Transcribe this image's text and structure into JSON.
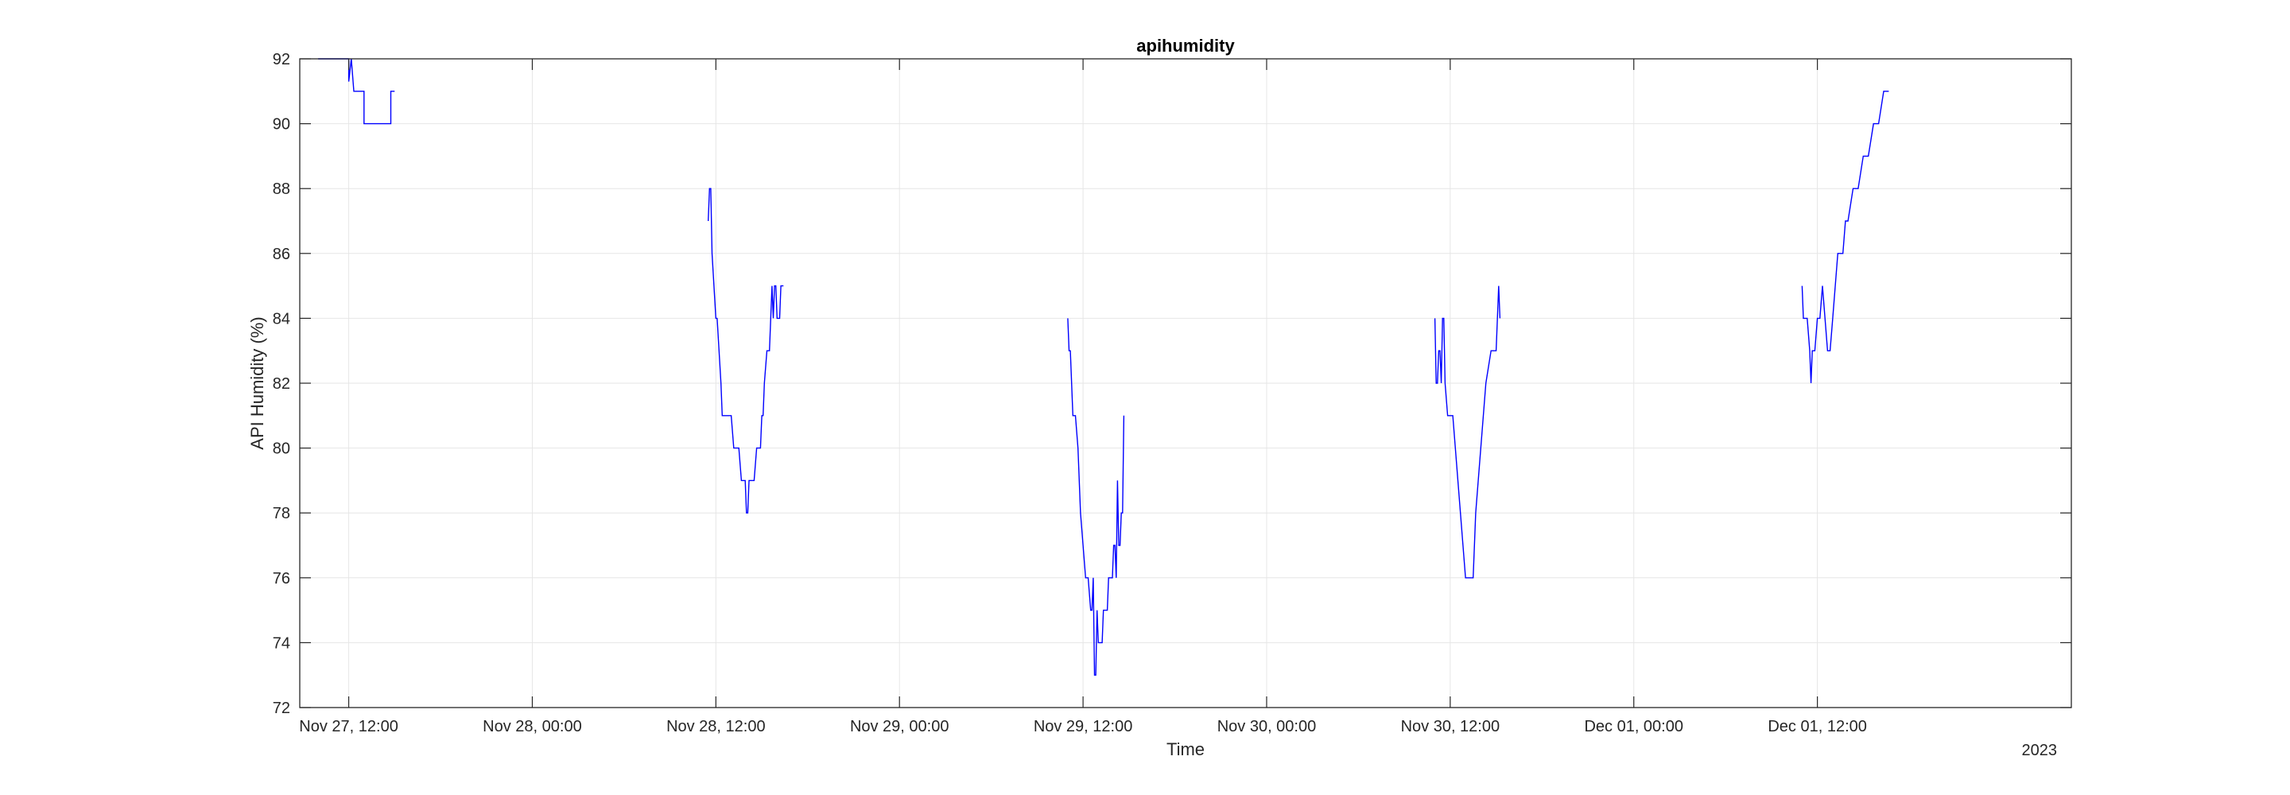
{
  "chart_data": {
    "type": "line",
    "title": "apihumidity",
    "xlabel": "Time",
    "ylabel": "API Humidity (%)",
    "x_secondary_label": "2023",
    "x_is_datetime": true,
    "xlim": [
      "2023-11-27T08:48",
      "2023-12-02T04:36"
    ],
    "ylim": [
      72,
      92
    ],
    "yticks": [
      72,
      74,
      76,
      78,
      80,
      82,
      84,
      86,
      88,
      90,
      92
    ],
    "xticks": [
      {
        "t": "2023-11-27T12:00",
        "label": "Nov 27, 12:00"
      },
      {
        "t": "2023-11-28T00:00",
        "label": "Nov 28, 00:00"
      },
      {
        "t": "2023-11-28T12:00",
        "label": "Nov 28, 12:00"
      },
      {
        "t": "2023-11-29T00:00",
        "label": "Nov 29, 00:00"
      },
      {
        "t": "2023-11-29T12:00",
        "label": "Nov 29, 12:00"
      },
      {
        "t": "2023-11-30T00:00",
        "label": "Nov 30, 00:00"
      },
      {
        "t": "2023-11-30T12:00",
        "label": "Nov 30, 12:00"
      },
      {
        "t": "2023-12-01T00:00",
        "label": "Dec 01, 00:00"
      },
      {
        "t": "2023-12-01T12:00",
        "label": "Dec 01, 12:00"
      }
    ],
    "grid": true,
    "line_color": "#0000ff",
    "series": [
      {
        "segments": [
          {
            "x": [
              "2023-11-27T10:00",
              "2023-11-27T12:00",
              "2023-11-27T12:00",
              "2023-11-27T12:10",
              "2023-11-27T12:20",
              "2023-11-27T13:00",
              "2023-11-27T13:00",
              "2023-11-27T14:45",
              "2023-11-27T14:45",
              "2023-11-27T15:00"
            ],
            "y": [
              92,
              92,
              91.3,
              92,
              91,
              91,
              90,
              90,
              91,
              91
            ]
          },
          {
            "x": [
              "2023-11-28T11:30",
              "2023-11-28T11:35",
              "2023-11-28T11:40",
              "2023-11-28T11:45",
              "2023-11-28T12:00",
              "2023-11-28T12:05",
              "2023-11-28T12:20",
              "2023-11-28T12:25",
              "2023-11-28T12:30",
              "2023-11-28T12:40",
              "2023-11-28T13:00",
              "2023-11-28T13:10",
              "2023-11-28T13:30",
              "2023-11-28T13:40",
              "2023-11-28T13:55",
              "2023-11-28T14:00",
              "2023-11-28T14:05",
              "2023-11-28T14:10",
              "2023-11-28T14:30",
              "2023-11-28T14:40",
              "2023-11-28T14:55",
              "2023-11-28T15:00",
              "2023-11-28T15:05",
              "2023-11-28T15:10",
              "2023-11-28T15:20",
              "2023-11-28T15:30",
              "2023-11-28T15:35",
              "2023-11-28T15:40",
              "2023-11-28T15:45",
              "2023-11-28T15:50",
              "2023-11-28T15:55",
              "2023-11-28T16:00",
              "2023-11-28T16:05",
              "2023-11-28T16:10",
              "2023-11-28T16:15",
              "2023-11-28T16:20",
              "2023-11-28T16:25"
            ],
            "y": [
              87,
              88,
              88,
              86,
              84,
              84,
              82,
              81,
              81,
              81,
              81,
              80,
              80,
              79,
              79,
              78,
              78,
              79,
              79,
              80,
              80,
              81,
              81,
              82,
              83,
              83,
              84,
              85,
              84,
              85,
              85,
              84,
              84,
              84,
              85,
              85,
              85
            ]
          },
          {
            "x": [
              "2023-11-29T11:00",
              "2023-11-29T11:05",
              "2023-11-29T11:10",
              "2023-11-29T11:20",
              "2023-11-29T11:30",
              "2023-11-29T11:40",
              "2023-11-29T11:50",
              "2023-11-29T12:00",
              "2023-11-29T12:10",
              "2023-11-29T12:20",
              "2023-11-29T12:30",
              "2023-11-29T12:35",
              "2023-11-29T12:40",
              "2023-11-29T12:45",
              "2023-11-29T12:50",
              "2023-11-29T12:55",
              "2023-11-29T13:00",
              "2023-11-29T13:15",
              "2023-11-29T13:20",
              "2023-11-29T13:35",
              "2023-11-29T13:40",
              "2023-11-29T13:55",
              "2023-11-29T14:00",
              "2023-11-29T14:05",
              "2023-11-29T14:10",
              "2023-11-29T14:15",
              "2023-11-29T14:20",
              "2023-11-29T14:25",
              "2023-11-29T14:30",
              "2023-11-29T14:35",
              "2023-11-29T14:40"
            ],
            "y": [
              84,
              83,
              83,
              81,
              81,
              80,
              78,
              77,
              76,
              76,
              75,
              75,
              76,
              73,
              73,
              75,
              74,
              74,
              75,
              75,
              76,
              76,
              77,
              77,
              76,
              79,
              77,
              77,
              78,
              78,
              81
            ]
          },
          {
            "x": [
              "2023-11-30T11:00",
              "2023-11-30T11:05",
              "2023-11-30T11:10",
              "2023-11-30T11:15",
              "2023-11-30T11:20",
              "2023-11-30T11:25",
              "2023-11-30T11:30",
              "2023-11-30T11:35",
              "2023-11-30T11:40",
              "2023-11-30T11:50",
              "2023-11-30T12:00",
              "2023-11-30T12:10",
              "2023-11-30T12:20",
              "2023-11-30T12:30",
              "2023-11-30T12:40",
              "2023-11-30T12:50",
              "2023-11-30T13:00",
              "2023-11-30T13:30",
              "2023-11-30T13:40",
              "2023-11-30T14:00",
              "2023-11-30T14:20",
              "2023-11-30T14:40",
              "2023-11-30T15:00",
              "2023-11-30T15:05",
              "2023-11-30T15:10",
              "2023-11-30T15:15"
            ],
            "y": [
              84,
              82,
              82,
              83,
              83,
              82,
              84,
              84,
              82,
              81,
              81,
              81,
              80,
              79,
              78,
              77,
              76,
              76,
              78,
              80,
              82,
              83,
              83,
              84,
              85,
              84
            ]
          },
          {
            "x": [
              "2023-12-01T11:00",
              "2023-12-01T11:05",
              "2023-12-01T11:10",
              "2023-12-01T11:20",
              "2023-12-01T11:30",
              "2023-12-01T11:35",
              "2023-12-01T11:40",
              "2023-12-01T11:50",
              "2023-12-01T12:00",
              "2023-12-01T12:10",
              "2023-12-01T12:20",
              "2023-12-01T12:30",
              "2023-12-01T12:40",
              "2023-12-01T12:50",
              "2023-12-01T13:00",
              "2023-12-01T13:10",
              "2023-12-01T13:20",
              "2023-12-01T13:30",
              "2023-12-01T13:40",
              "2023-12-01T13:50",
              "2023-12-01T14:00",
              "2023-12-01T14:20",
              "2023-12-01T14:40",
              "2023-12-01T15:00",
              "2023-12-01T15:20",
              "2023-12-01T15:40",
              "2023-12-01T16:00",
              "2023-12-01T16:20",
              "2023-12-01T16:30",
              "2023-12-01T16:40"
            ],
            "y": [
              85,
              84,
              84,
              84,
              83,
              82,
              83,
              83,
              84,
              84,
              85,
              84,
              83,
              83,
              84,
              85,
              86,
              86,
              86,
              87,
              87,
              88,
              88,
              89,
              89,
              90,
              90,
              91,
              91,
              91
            ]
          }
        ]
      }
    ]
  }
}
